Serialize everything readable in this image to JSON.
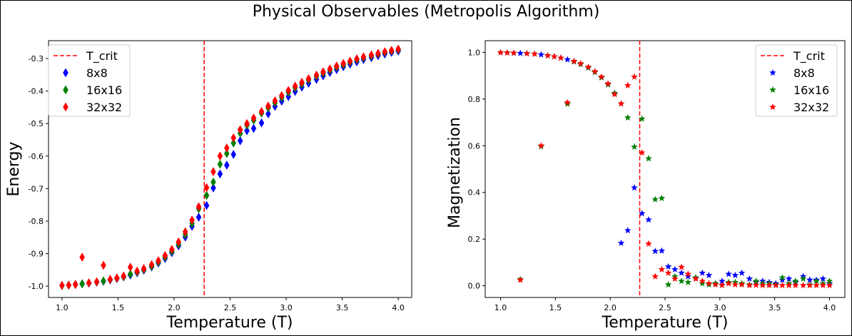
{
  "figure": {
    "title": "Physical Observables (Metropolis Algorithm)"
  },
  "colors": {
    "crit": "#ff0000",
    "s8": "#0000ff",
    "s16": "#008000",
    "s32": "#ff0000"
  },
  "chart_data": [
    {
      "type": "scatter",
      "marker": "diamond",
      "xlabel": "Temperature (T)",
      "ylabel": "Energy",
      "xlim": [
        0.88,
        4.12
      ],
      "ylim": [
        -1.035,
        -0.245
      ],
      "xticks": [
        "1.0",
        "1.5",
        "2.0",
        "2.5",
        "3.0",
        "3.5",
        "4.0"
      ],
      "yticks": [
        "-1.0",
        "-0.9",
        "-0.8",
        "-0.7",
        "-0.6",
        "-0.5",
        "-0.4",
        "-0.3"
      ],
      "critical_T": 2.269,
      "legend_position": "top-left",
      "legend": [
        "T_crit",
        "8x8",
        "16x16",
        "32x32"
      ],
      "x": [
        1.0,
        1.06,
        1.12,
        1.18,
        1.24,
        1.31,
        1.37,
        1.43,
        1.49,
        1.55,
        1.61,
        1.67,
        1.73,
        1.8,
        1.86,
        1.92,
        1.98,
        2.04,
        2.1,
        2.16,
        2.22,
        2.29,
        2.35,
        2.41,
        2.47,
        2.53,
        2.59,
        2.65,
        2.71,
        2.78,
        2.84,
        2.9,
        2.96,
        3.02,
        3.08,
        3.14,
        3.2,
        3.27,
        3.33,
        3.39,
        3.45,
        3.51,
        3.57,
        3.63,
        3.69,
        3.76,
        3.82,
        3.88,
        3.94,
        4.0
      ],
      "series": [
        {
          "name": "8x8",
          "values": [
            -0.998,
            -0.997,
            -0.995,
            -0.993,
            -0.991,
            -0.988,
            -0.985,
            -0.981,
            -0.977,
            -0.972,
            -0.966,
            -0.959,
            -0.951,
            -0.941,
            -0.929,
            -0.915,
            -0.897,
            -0.876,
            -0.849,
            -0.816,
            -0.788,
            -0.752,
            -0.698,
            -0.655,
            -0.628,
            -0.595,
            -0.553,
            -0.522,
            -0.515,
            -0.498,
            -0.47,
            -0.447,
            -0.431,
            -0.417,
            -0.401,
            -0.388,
            -0.376,
            -0.364,
            -0.353,
            -0.343,
            -0.334,
            -0.325,
            -0.317,
            -0.31,
            -0.303,
            -0.297,
            -0.291,
            -0.286,
            -0.281,
            -0.277
          ]
        },
        {
          "name": "16x16",
          "values": [
            -0.998,
            -0.997,
            -0.995,
            -0.993,
            -0.99,
            -0.987,
            -0.984,
            -0.98,
            -0.976,
            -0.971,
            -0.963,
            -0.957,
            -0.949,
            -0.939,
            -0.926,
            -0.911,
            -0.893,
            -0.871,
            -0.841,
            -0.807,
            -0.762,
            -0.721,
            -0.68,
            -0.625,
            -0.592,
            -0.56,
            -0.53,
            -0.505,
            -0.49,
            -0.468,
            -0.452,
            -0.436,
            -0.42,
            -0.404,
            -0.39,
            -0.378,
            -0.366,
            -0.355,
            -0.345,
            -0.336,
            -0.327,
            -0.319,
            -0.311,
            -0.304,
            -0.298,
            -0.292,
            -0.286,
            -0.281,
            -0.277,
            -0.273
          ]
        },
        {
          "name": "32x32",
          "values": [
            -0.998,
            -0.997,
            -0.995,
            -0.911,
            -0.99,
            -0.987,
            -0.936,
            -0.979,
            -0.975,
            -0.969,
            -0.942,
            -0.954,
            -0.946,
            -0.934,
            -0.922,
            -0.906,
            -0.887,
            -0.864,
            -0.833,
            -0.797,
            -0.756,
            -0.697,
            -0.648,
            -0.6,
            -0.575,
            -0.544,
            -0.519,
            -0.5,
            -0.483,
            -0.463,
            -0.446,
            -0.43,
            -0.414,
            -0.398,
            -0.385,
            -0.373,
            -0.362,
            -0.351,
            -0.341,
            -0.332,
            -0.323,
            -0.315,
            -0.308,
            -0.301,
            -0.295,
            -0.289,
            -0.284,
            -0.279,
            -0.275,
            -0.271
          ]
        }
      ]
    },
    {
      "type": "scatter",
      "marker": "star",
      "xlabel": "Temperature (T)",
      "ylabel": "Magnetization",
      "xlim": [
        0.86,
        4.14
      ],
      "ylim": [
        -0.05,
        1.05
      ],
      "xticks": [
        "1.0",
        "1.5",
        "2.0",
        "2.5",
        "3.0",
        "3.5",
        "4.0"
      ],
      "yticks": [
        "0.0",
        "0.2",
        "0.4",
        "0.6",
        "0.8",
        "1.0"
      ],
      "critical_T": 2.269,
      "legend_position": "top-right",
      "legend": [
        "T_crit",
        "8x8",
        "16x16",
        "32x32"
      ],
      "x": [
        1.0,
        1.06,
        1.12,
        1.18,
        1.24,
        1.31,
        1.37,
        1.43,
        1.49,
        1.55,
        1.61,
        1.67,
        1.73,
        1.8,
        1.86,
        1.92,
        1.98,
        2.04,
        2.1,
        2.16,
        2.22,
        2.29,
        2.35,
        2.41,
        2.47,
        2.53,
        2.59,
        2.65,
        2.71,
        2.78,
        2.84,
        2.9,
        2.96,
        3.02,
        3.08,
        3.14,
        3.2,
        3.27,
        3.33,
        3.39,
        3.45,
        3.51,
        3.57,
        3.63,
        3.69,
        3.76,
        3.82,
        3.88,
        3.94,
        4.0
      ],
      "series": [
        {
          "name": "8x8",
          "values": [
            0.999,
            0.998,
            0.997,
            0.996,
            0.995,
            0.993,
            0.99,
            0.986,
            0.982,
            0.976,
            0.969,
            0.96,
            0.949,
            0.934,
            0.915,
            0.892,
            0.862,
            0.825,
            0.183,
            0.237,
            0.42,
            0.31,
            0.283,
            0.148,
            0.15,
            0.082,
            0.07,
            0.055,
            0.04,
            0.035,
            0.055,
            0.045,
            0.01,
            0.02,
            0.05,
            0.045,
            0.055,
            0.03,
            0.015,
            0.02,
            0.015,
            0.01,
            0.025,
            0.03,
            0.015,
            0.04,
            0.025,
            0.025,
            0.03,
            0.01
          ]
        },
        {
          "name": "16x16",
          "values": [
            0.999,
            0.998,
            0.997,
            0.028,
            0.995,
            0.993,
            0.597,
            0.986,
            0.982,
            0.976,
            0.779,
            0.96,
            0.949,
            0.934,
            0.915,
            0.892,
            0.862,
            0.825,
            0.78,
            0.72,
            0.595,
            0.715,
            0.545,
            0.37,
            0.375,
            0.005,
            0.04,
            0.02,
            0.015,
            0.035,
            0.01,
            0.005,
            0.01,
            0.002,
            0.015,
            0.015,
            0.01,
            0.005,
            0.02,
            0.01,
            0.01,
            0.005,
            0.035,
            0.01,
            0.02,
            0.03,
            0.005,
            0.02,
            0.01,
            0.02
          ]
        },
        {
          "name": "32x32",
          "values": [
            0.999,
            0.998,
            0.997,
            0.025,
            0.995,
            0.993,
            0.6,
            0.986,
            0.982,
            0.976,
            0.785,
            0.962,
            0.952,
            0.937,
            0.918,
            0.895,
            0.866,
            0.82,
            0.78,
            0.858,
            0.895,
            0.57,
            0.18,
            0.04,
            0.07,
            0.055,
            0.03,
            0.08,
            0.05,
            0.03,
            0.02,
            0.01,
            0.005,
            0.003,
            0.01,
            0.005,
            0.005,
            0.002,
            0.003,
            0.002,
            0.002,
            0.002,
            0.002,
            0.002,
            0.002,
            0.002,
            0.002,
            0.002,
            0.002,
            0.002
          ]
        }
      ]
    }
  ]
}
